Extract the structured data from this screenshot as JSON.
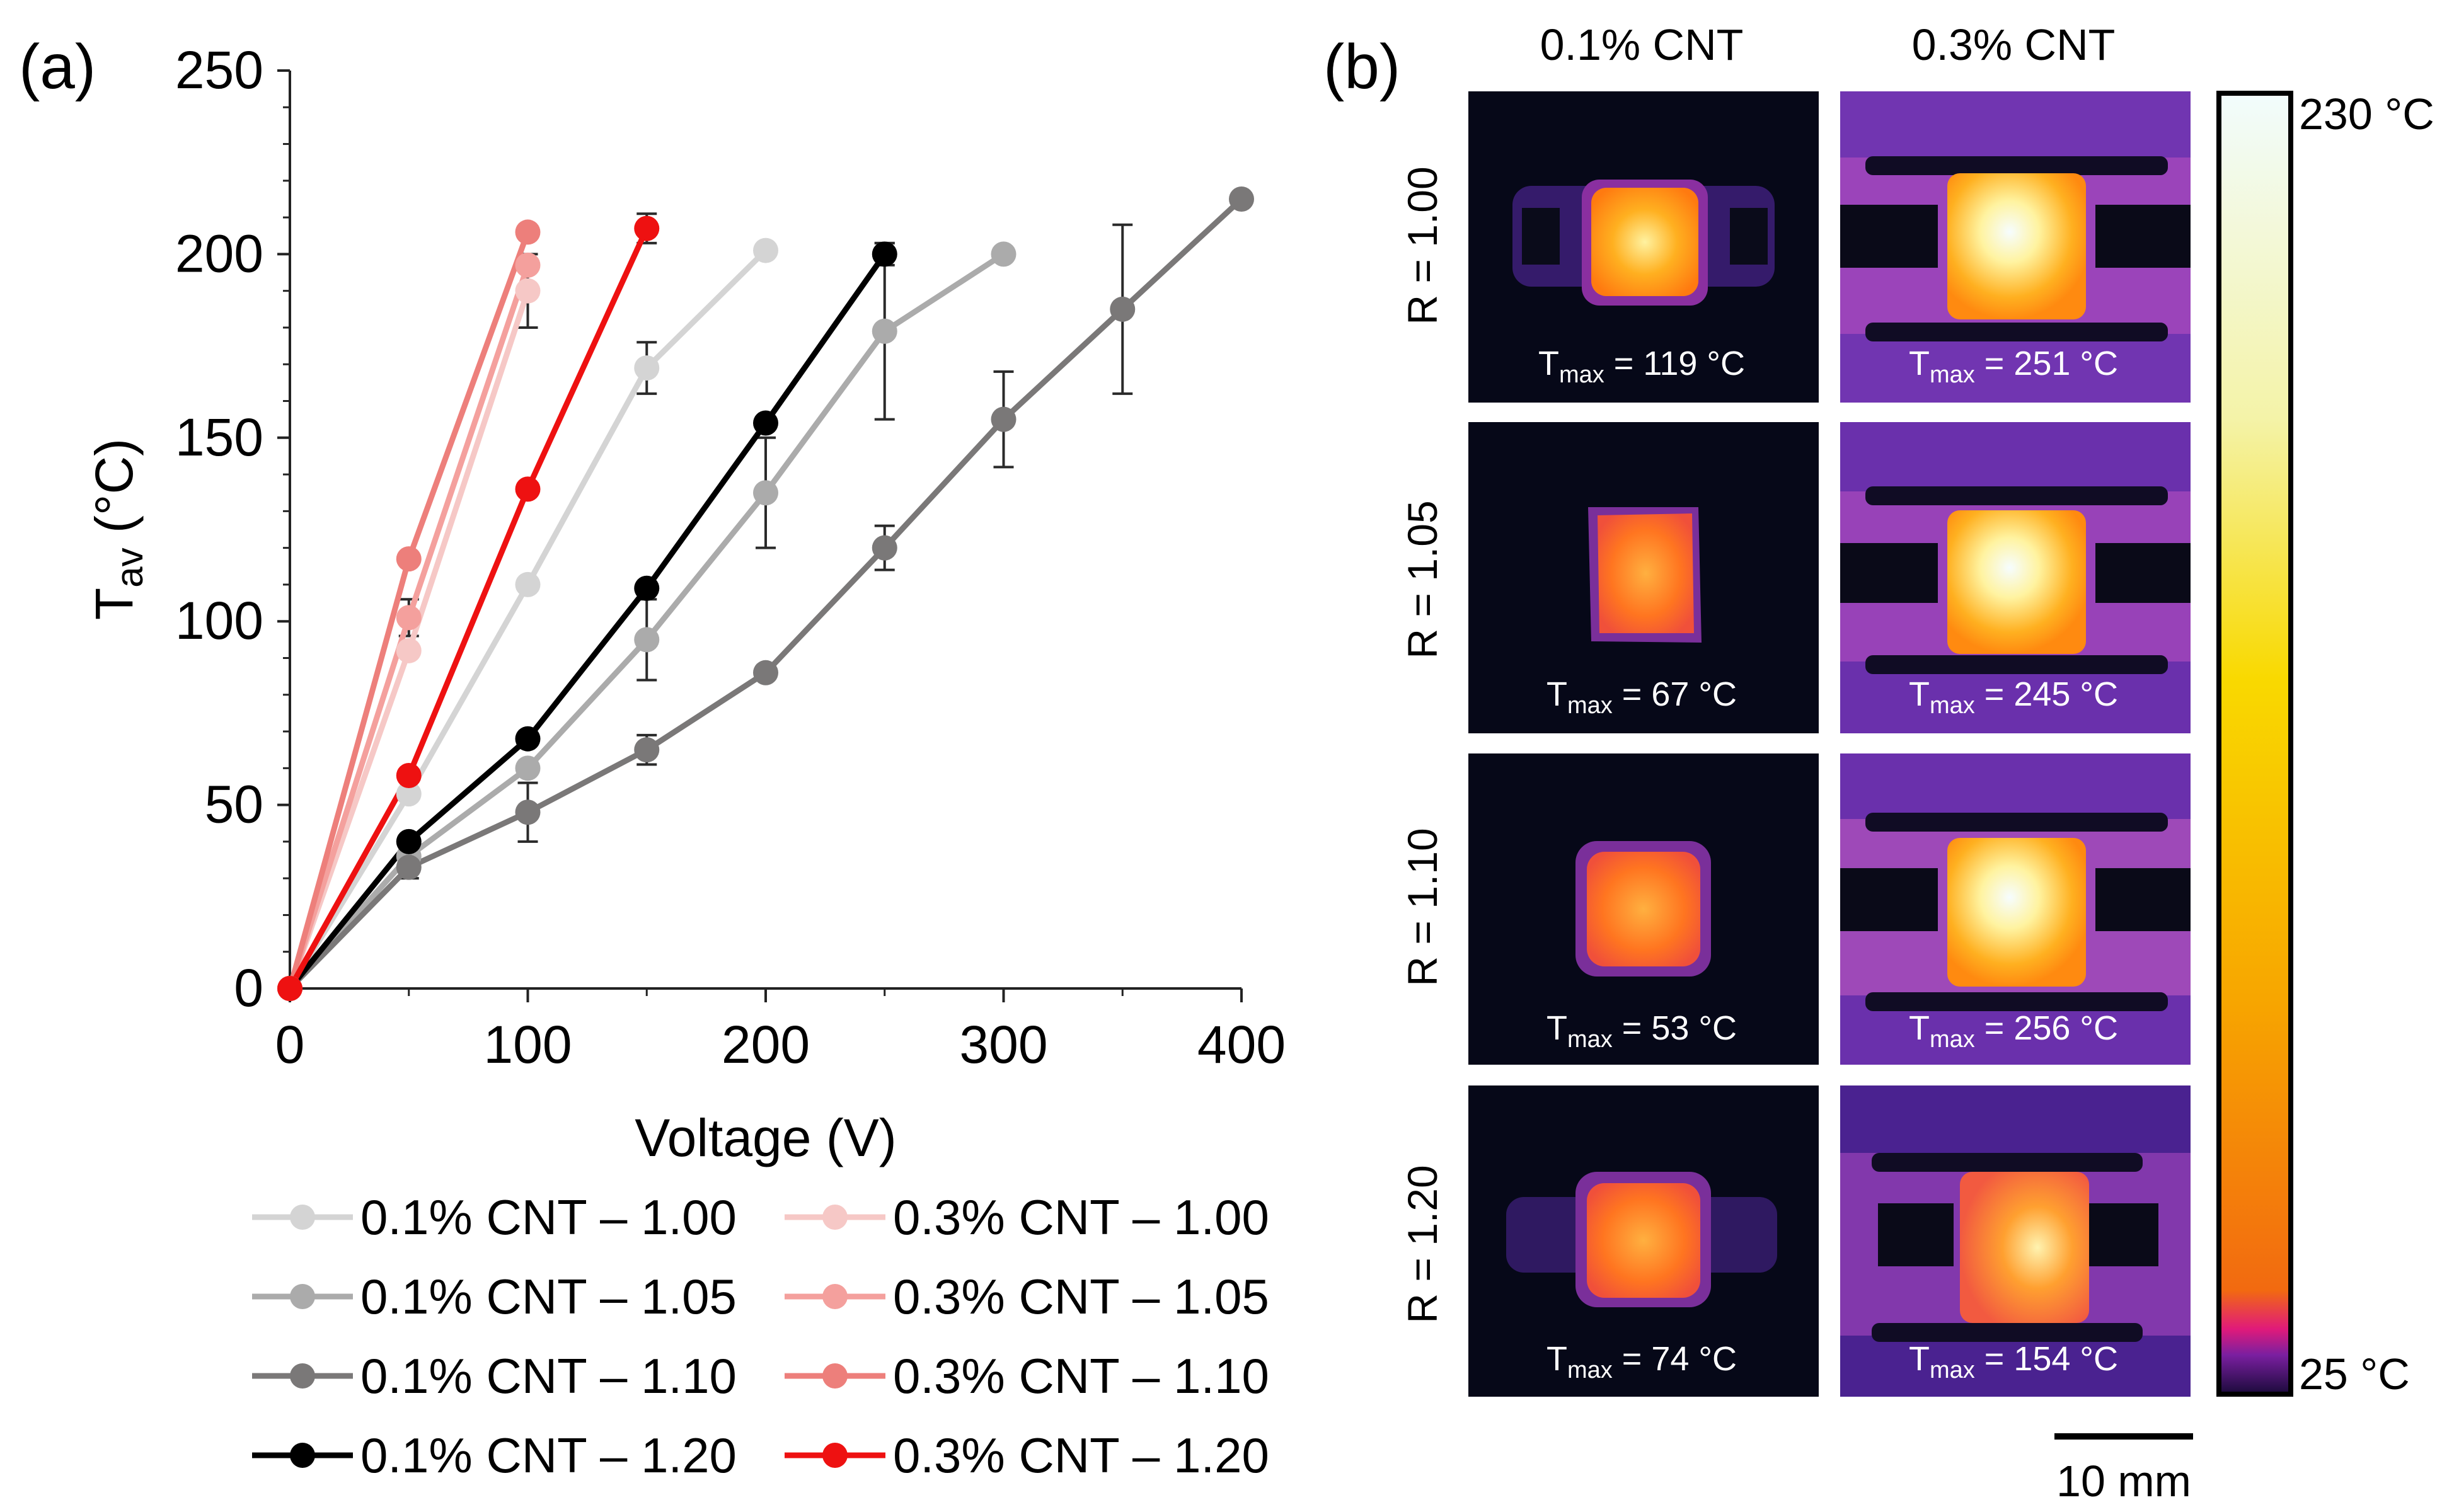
{
  "panels": {
    "a": "(a)",
    "b": "(b)"
  },
  "chart_data": {
    "type": "line",
    "xlabel": "Voltage (V)",
    "ylabel_main": "T",
    "ylabel_sub": "av",
    "ylabel_unit": " (°C)",
    "xlim": [
      0,
      400
    ],
    "ylim": [
      0,
      250
    ],
    "xticks": [
      "0",
      "100",
      "200",
      "300",
      "400"
    ],
    "yticks": [
      "0",
      "50",
      "100",
      "150",
      "200",
      "250"
    ],
    "xtick_values": [
      0,
      100,
      200,
      300,
      400
    ],
    "ytick_values": [
      0,
      50,
      100,
      150,
      200,
      250
    ],
    "series": [
      {
        "name": "0.1% CNT – 1.00",
        "color": "#d4d4d4",
        "x": [
          0,
          50,
          100,
          150,
          200
        ],
        "y": [
          0,
          53,
          110,
          169,
          201
        ],
        "err": [
          0,
          0,
          0,
          7,
          0
        ]
      },
      {
        "name": "0.1% CNT – 1.05",
        "color": "#ababab",
        "x": [
          0,
          50,
          100,
          150,
          200,
          250,
          300
        ],
        "y": [
          0,
          36,
          60,
          95,
          135,
          179,
          200
        ],
        "err": [
          0,
          0,
          0,
          11,
          15,
          24,
          0
        ]
      },
      {
        "name": "0.1% CNT – 1.10",
        "color": "#7a7878",
        "x": [
          0,
          50,
          100,
          150,
          200,
          250,
          300,
          350,
          400
        ],
        "y": [
          0,
          33,
          48,
          65,
          86,
          120,
          155,
          185,
          215
        ],
        "err": [
          0,
          3,
          8,
          4,
          0,
          6,
          13,
          23,
          0
        ]
      },
      {
        "name": "0.1% CNT – 1.20",
        "color": "#000000",
        "x": [
          0,
          50,
          100,
          150,
          200,
          250
        ],
        "y": [
          0,
          40,
          68,
          109,
          154,
          200
        ],
        "err": [
          0,
          0,
          0,
          0,
          0,
          3
        ]
      },
      {
        "name": "0.3% CNT – 1.00",
        "color": "#f6c8c6",
        "x": [
          0,
          50,
          100
        ],
        "y": [
          0,
          92,
          190
        ],
        "err": [
          0,
          0,
          10
        ]
      },
      {
        "name": "0.3% CNT – 1.05",
        "color": "#f4a09d",
        "x": [
          0,
          50,
          100
        ],
        "y": [
          0,
          101,
          197
        ],
        "err": [
          0,
          5,
          0
        ]
      },
      {
        "name": "0.3% CNT – 1.10",
        "color": "#ed7f7b",
        "x": [
          0,
          50,
          100
        ],
        "y": [
          0,
          117,
          206
        ],
        "err": [
          0,
          0,
          0
        ]
      },
      {
        "name": "0.3% CNT – 1.20",
        "color": "#ee1111",
        "x": [
          0,
          50,
          100,
          150
        ],
        "y": [
          0,
          58,
          136,
          207
        ],
        "err": [
          0,
          0,
          0,
          4
        ]
      }
    ]
  },
  "thermal": {
    "col_titles": [
      "0.1% CNT",
      "0.3% CNT"
    ],
    "row_labels": [
      "R = 1.00",
      "R = 1.05",
      "R = 1.10",
      "R = 1.20"
    ],
    "tmax": [
      [
        "119 °C",
        "251 °C"
      ],
      [
        "67 °C",
        "245 °C"
      ],
      [
        "53 °C",
        "256 °C"
      ],
      [
        "74 °C",
        "154 °C"
      ]
    ],
    "tmax_prefix": "T",
    "tmax_sub": "max",
    "tmax_eq": " = ",
    "colorbar_max": "230 °C",
    "colorbar_min": "25 °C",
    "scale_bar": "10 mm"
  }
}
